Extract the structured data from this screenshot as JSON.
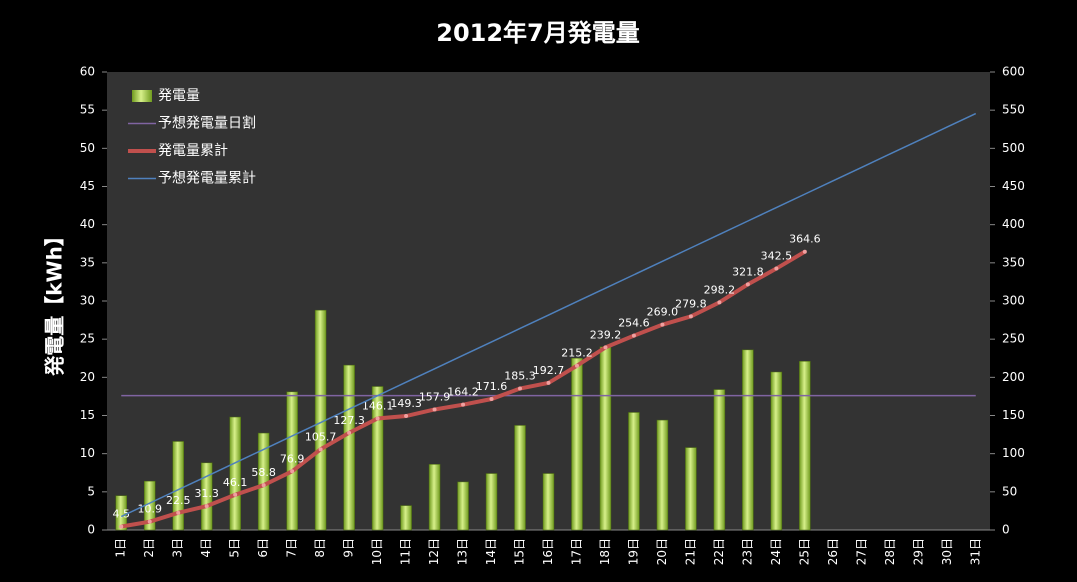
{
  "chart_data": {
    "type": "bar",
    "title": "2012年7月発電量",
    "y_label": "発電量【kWh】",
    "categories": [
      "1日",
      "2日",
      "3日",
      "4日",
      "5日",
      "6日",
      "7日",
      "8日",
      "9日",
      "10日",
      "11日",
      "12日",
      "13日",
      "14日",
      "15日",
      "16日",
      "17日",
      "18日",
      "19日",
      "20日",
      "21日",
      "22日",
      "23日",
      "24日",
      "25日",
      "26日",
      "27日",
      "28日",
      "29日",
      "30日",
      "31日"
    ],
    "ylim": [
      0,
      60
    ],
    "yticks": [
      0,
      5,
      10,
      15,
      20,
      25,
      30,
      35,
      40,
      45,
      50,
      55,
      60
    ],
    "y2lim": [
      0,
      600
    ],
    "y2ticks": [
      0,
      50,
      100,
      150,
      200,
      250,
      300,
      350,
      400,
      450,
      500,
      550,
      600
    ],
    "legend": "upper left",
    "series": [
      {
        "name": "発電量",
        "type": "bar",
        "color": "#9ccc3c",
        "values": [
          4.5,
          6.4,
          11.6,
          8.8,
          14.8,
          12.7,
          18.1,
          28.8,
          21.6,
          18.8,
          3.2,
          8.6,
          6.3,
          7.4,
          13.7,
          7.4,
          22.5,
          24.0,
          15.4,
          14.4,
          10.8,
          18.4,
          23.6,
          20.7,
          22.1,
          null,
          null,
          null,
          null,
          null,
          null
        ]
      },
      {
        "name": "予想発電量日割",
        "type": "line",
        "color": "#8064a2",
        "values": [
          17.6,
          17.6,
          17.6,
          17.6,
          17.6,
          17.6,
          17.6,
          17.6,
          17.6,
          17.6,
          17.6,
          17.6,
          17.6,
          17.6,
          17.6,
          17.6,
          17.6,
          17.6,
          17.6,
          17.6,
          17.6,
          17.6,
          17.6,
          17.6,
          17.6,
          17.6,
          17.6,
          17.6,
          17.6,
          17.6,
          17.6
        ]
      },
      {
        "name": "発電量累計",
        "type": "line",
        "color": "#c0504d",
        "axis": "y2",
        "markers": true,
        "values": [
          4.5,
          10.9,
          22.5,
          31.3,
          46.1,
          58.8,
          76.9,
          105.7,
          127.3,
          146.1,
          149.3,
          157.9,
          164.2,
          171.6,
          185.3,
          192.7,
          215.2,
          239.2,
          254.6,
          269.0,
          279.8,
          298.2,
          321.8,
          342.5,
          364.6,
          null,
          null,
          null,
          null,
          null,
          null
        ],
        "value_labels": [
          "4.5",
          "10.9",
          "22.5",
          "31.3",
          "46.1",
          "58.8",
          "76.9",
          "105.7",
          "127.3",
          "146.1",
          "149.3",
          "157.9",
          "164.2",
          "171.6",
          "185.3",
          "192.7",
          "215.2",
          "239.2",
          "254.6",
          "269.0",
          "279.8",
          "298.2",
          "321.8",
          "342.5",
          "364.6",
          null,
          null,
          null,
          null,
          null,
          null
        ]
      },
      {
        "name": "予想発電量累計",
        "type": "line",
        "color": "#4f81bd",
        "axis": "y2",
        "values": [
          17.6,
          35.2,
          52.8,
          70.4,
          88.0,
          105.6,
          123.2,
          140.8,
          158.4,
          176.0,
          193.6,
          211.2,
          228.8,
          246.4,
          264.0,
          281.6,
          299.2,
          316.8,
          334.4,
          352.0,
          369.6,
          387.2,
          404.8,
          422.4,
          440.0,
          457.6,
          475.2,
          492.8,
          510.4,
          528.0,
          545.6
        ]
      }
    ]
  }
}
